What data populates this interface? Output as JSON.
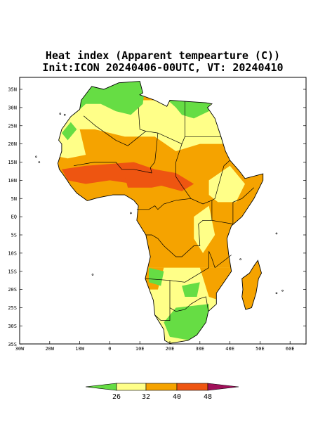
{
  "header": {
    "title": "Heat index (Apparent tempearture (C))",
    "subtitle": "Init:ICON 20240406-00UTC, VT: 20240410"
  },
  "map": {
    "lat_labels": [
      "35N",
      "30N",
      "25N",
      "20N",
      "15N",
      "10N",
      "5N",
      "EQ",
      "5S",
      "10S",
      "15S",
      "20S",
      "25S",
      "30S",
      "35S"
    ],
    "lon_labels": [
      "30W",
      "20W",
      "10W",
      "0",
      "10E",
      "20E",
      "30E",
      "40E",
      "50E",
      "60E"
    ]
  },
  "colorbar": {
    "ticks": [
      26,
      32,
      40,
      48
    ]
  }
}
